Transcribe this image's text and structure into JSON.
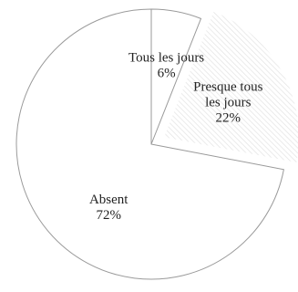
{
  "chart_data": {
    "type": "pie",
    "title": "",
    "slices": [
      {
        "label": [
          "Tous les jours"
        ],
        "percent_label": "6%",
        "value": 6,
        "color": "#ffffff",
        "pattern": "none",
        "exploded": false
      },
      {
        "label": [
          "Presque tous",
          "les jours"
        ],
        "percent_label": "22%",
        "value": 22,
        "color": "#ffffff",
        "pattern": "diagonal-hatch",
        "exploded": true
      },
      {
        "label": [
          "Absent"
        ],
        "percent_label": "72%",
        "value": 72,
        "color": "#ffffff",
        "pattern": "none",
        "exploded": false
      }
    ],
    "start_angle_deg": 0,
    "direction": "clockwise",
    "stroke_color": "#9a9a9a",
    "hatch_color": "#e3e3e3",
    "legend": "none"
  }
}
